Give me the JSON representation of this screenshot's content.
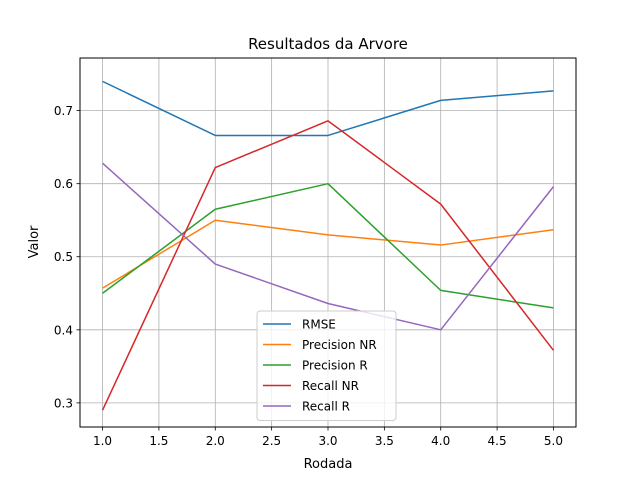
{
  "chart_data": {
    "type": "line",
    "title": "Resultados da Arvore",
    "xlabel": "Rodada",
    "ylabel": "Valor",
    "x": [
      1,
      2,
      3,
      4,
      5
    ],
    "xlim": [
      0.8,
      5.2
    ],
    "ylim": [
      0.267,
      0.772
    ],
    "xticks": [
      "1.0",
      "1.5",
      "2.0",
      "2.5",
      "3.0",
      "3.5",
      "4.0",
      "4.5",
      "5.0"
    ],
    "yticks": [
      "0.3",
      "0.4",
      "0.5",
      "0.6",
      "0.7"
    ],
    "grid": true,
    "legend_position": "lower-center",
    "series": [
      {
        "name": "RMSE",
        "color": "#1f77b4",
        "values": [
          0.74,
          0.666,
          0.666,
          0.714,
          0.727
        ]
      },
      {
        "name": "Precision NR",
        "color": "#ff7f0e",
        "values": [
          0.457,
          0.55,
          0.53,
          0.516,
          0.537
        ]
      },
      {
        "name": "Precision R",
        "color": "#2ca02c",
        "values": [
          0.45,
          0.565,
          0.6,
          0.454,
          0.43
        ]
      },
      {
        "name": "Recall NR",
        "color": "#d62728",
        "values": [
          0.29,
          0.622,
          0.686,
          0.572,
          0.372
        ]
      },
      {
        "name": "Recall R",
        "color": "#9467bd",
        "values": [
          0.628,
          0.49,
          0.436,
          0.4,
          0.596
        ]
      }
    ]
  }
}
